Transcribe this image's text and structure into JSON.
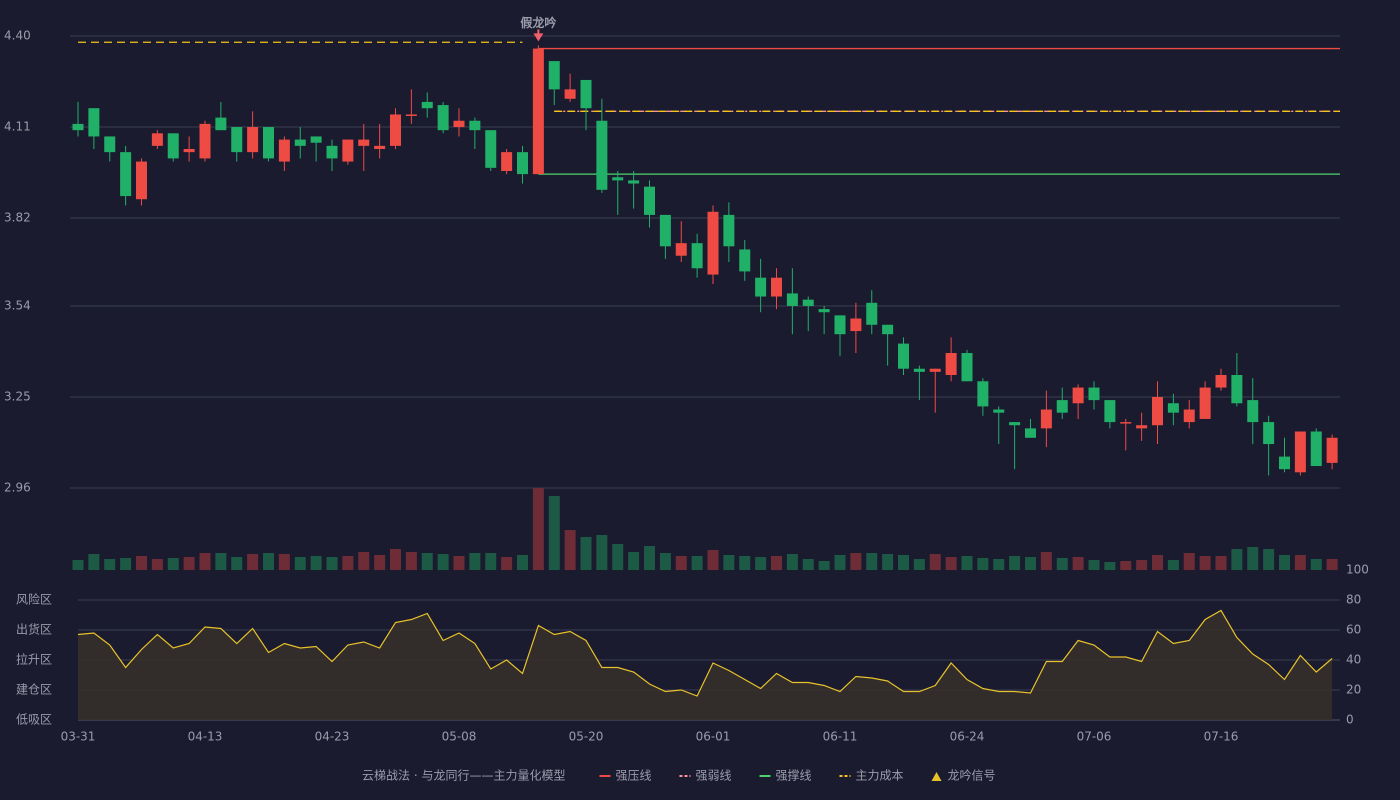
{
  "chart_data": [
    {
      "type": "candlestick",
      "open": [
        4.12,
        4.17,
        4.08,
        4.03,
        3.88,
        4.05,
        4.09,
        4.03,
        4.01,
        4.14,
        4.11,
        4.03,
        4.11,
        4.0,
        4.07,
        4.08,
        4.05,
        4.0,
        4.05,
        4.04,
        4.05,
        4.15,
        4.19,
        4.18,
        4.11,
        4.13,
        4.1,
        3.97,
        4.03,
        3.96,
        4.32,
        4.2,
        4.26,
        4.13,
        3.95,
        3.94,
        3.92,
        3.83,
        3.7,
        3.74,
        3.64,
        3.83,
        3.72,
        3.63,
        3.57,
        3.58,
        3.56,
        3.53,
        3.51,
        3.46,
        3.55,
        3.48,
        3.42,
        3.34,
        3.33,
        3.32,
        3.39,
        3.3,
        3.21,
        3.17,
        3.15,
        3.15,
        3.24,
        3.23,
        3.28,
        3.24,
        3.17,
        3.15,
        3.16,
        3.23,
        3.17,
        3.18,
        3.28,
        3.32,
        3.24,
        3.17,
        3.06,
        3.01,
        3.14,
        3.04
      ],
      "high": [
        4.19,
        4.17,
        4.08,
        4.05,
        4.01,
        4.1,
        4.09,
        4.08,
        4.13,
        4.19,
        4.11,
        4.16,
        4.11,
        4.08,
        4.11,
        4.08,
        4.07,
        4.07,
        4.12,
        4.12,
        4.17,
        4.23,
        4.22,
        4.19,
        4.17,
        4.14,
        4.1,
        4.04,
        4.05,
        4.37,
        4.32,
        4.28,
        4.26,
        4.2,
        3.97,
        3.97,
        3.94,
        3.83,
        3.81,
        3.77,
        3.86,
        3.87,
        3.75,
        3.69,
        3.66,
        3.66,
        3.57,
        3.54,
        3.51,
        3.55,
        3.59,
        3.48,
        3.44,
        3.35,
        3.34,
        3.44,
        3.4,
        3.31,
        3.22,
        3.17,
        3.18,
        3.27,
        3.28,
        3.29,
        3.3,
        3.24,
        3.18,
        3.2,
        3.3,
        3.26,
        3.24,
        3.3,
        3.34,
        3.39,
        3.31,
        3.19,
        3.12,
        3.14,
        3.15,
        3.13
      ],
      "low": [
        4.08,
        4.04,
        4.0,
        3.86,
        3.86,
        4.04,
        4.0,
        4.0,
        4.0,
        4.1,
        4.0,
        4.01,
        4.0,
        3.97,
        4.01,
        4.0,
        3.97,
        3.99,
        3.97,
        4.01,
        4.04,
        4.12,
        4.14,
        4.09,
        4.08,
        4.04,
        3.97,
        3.96,
        3.93,
        3.96,
        4.18,
        4.19,
        4.1,
        3.9,
        3.83,
        3.85,
        3.79,
        3.69,
        3.68,
        3.63,
        3.61,
        3.68,
        3.62,
        3.52,
        3.53,
        3.45,
        3.46,
        3.45,
        3.38,
        3.39,
        3.45,
        3.35,
        3.32,
        3.24,
        3.2,
        3.3,
        3.3,
        3.19,
        3.1,
        3.02,
        3.12,
        3.09,
        3.18,
        3.18,
        3.21,
        3.15,
        3.08,
        3.11,
        3.1,
        3.16,
        3.15,
        3.18,
        3.27,
        3.22,
        3.1,
        3.0,
        3.01,
        3.0,
        3.03,
        3.02
      ],
      "close": [
        4.1,
        4.08,
        4.03,
        3.89,
        4.0,
        4.09,
        4.01,
        4.04,
        4.12,
        4.1,
        4.03,
        4.11,
        4.01,
        4.07,
        4.05,
        4.06,
        4.01,
        4.07,
        4.07,
        4.05,
        4.15,
        4.15,
        4.17,
        4.1,
        4.13,
        4.1,
        3.98,
        4.03,
        3.96,
        4.36,
        4.23,
        4.23,
        4.17,
        3.91,
        3.94,
        3.93,
        3.83,
        3.73,
        3.74,
        3.66,
        3.84,
        3.73,
        3.65,
        3.57,
        3.63,
        3.54,
        3.54,
        3.52,
        3.45,
        3.5,
        3.48,
        3.45,
        3.34,
        3.33,
        3.34,
        3.39,
        3.3,
        3.22,
        3.2,
        3.16,
        3.12,
        3.21,
        3.2,
        3.28,
        3.24,
        3.17,
        3.17,
        3.16,
        3.25,
        3.2,
        3.21,
        3.28,
        3.32,
        3.23,
        3.17,
        3.1,
        3.02,
        3.14,
        3.03,
        3.12
      ],
      "up_color": "#ef4b45",
      "down_color": "#21b068",
      "ylim": [
        2.96,
        4.4
      ],
      "yticks": [
        2.96,
        3.25,
        3.54,
        3.82,
        4.11,
        {
          "value": 4.4,
          "label": "4.40"
        }
      ],
      "grid": true,
      "lines": [
        {
          "name": "强压线",
          "value": 4.36,
          "x": [
            29,
            79
          ],
          "color": "#ef4b45",
          "style": "solid"
        },
        {
          "name": "强弱线",
          "value": 4.16,
          "x": [
            30,
            79
          ],
          "color": "#ff8fa0",
          "style": "dashdot"
        },
        {
          "name": "强撑线",
          "value": 3.96,
          "x": [
            29,
            79
          ],
          "color": "#4ed36a",
          "style": "solid"
        },
        {
          "name": "主力成本",
          "value": 4.38,
          "x": [
            0,
            28
          ],
          "color": "#f5c518",
          "style": "dashed"
        },
        {
          "name": "主力成本",
          "value": 4.16,
          "x": [
            30,
            79
          ],
          "color": "#f5c518",
          "style": "dashed"
        }
      ],
      "signal": {
        "name": "龙吟信号",
        "text": "假龙吟",
        "x": 29,
        "value": 4.37,
        "color": "#f0606a"
      }
    },
    {
      "type": "volume",
      "values": [
        10,
        16,
        11,
        12,
        14,
        11,
        12,
        13,
        17,
        17,
        13,
        16,
        17,
        16,
        13,
        14,
        13,
        14,
        18,
        15,
        21,
        18,
        17,
        16,
        14,
        17,
        17,
        13,
        15,
        82,
        74,
        40,
        33,
        35,
        26,
        18,
        24,
        17,
        14,
        14,
        20,
        15,
        14,
        13,
        14,
        16,
        11,
        9,
        15,
        17,
        17,
        16,
        15,
        11,
        16,
        13,
        14,
        12,
        11,
        14,
        13,
        18,
        12,
        13,
        10,
        8,
        9,
        10,
        15,
        10,
        17,
        14,
        14,
        21,
        23,
        21,
        15,
        15,
        11,
        11
      ],
      "ylim": [
        0,
        82
      ],
      "up_color": "#6e2c37",
      "down_color": "#1d5a46"
    },
    {
      "type": "area",
      "categories": [
        "03-31",
        null,
        null,
        null,
        null,
        null,
        null,
        null,
        "04-13",
        null,
        null,
        null,
        null,
        null,
        null,
        null,
        "04-23",
        null,
        null,
        null,
        null,
        null,
        null,
        null,
        "05-08",
        null,
        null,
        null,
        null,
        null,
        null,
        null,
        "05-20",
        null,
        null,
        null,
        null,
        null,
        null,
        null,
        "06-01",
        null,
        null,
        null,
        null,
        null,
        null,
        null,
        "06-11",
        null,
        null,
        null,
        null,
        null,
        null,
        null,
        "06-24",
        null,
        null,
        null,
        null,
        null,
        null,
        null,
        "07-06",
        null,
        null,
        null,
        null,
        null,
        null,
        null,
        "07-16",
        null,
        null,
        null,
        null,
        null,
        null,
        null
      ],
      "values": [
        57,
        58,
        50,
        35,
        47,
        57,
        48,
        51,
        62,
        61,
        51,
        61,
        45,
        51,
        48,
        49,
        39,
        50,
        52,
        48,
        65,
        67,
        71,
        53,
        58,
        51,
        34,
        40,
        31,
        63,
        57,
        59,
        53,
        35,
        35,
        32,
        24,
        19,
        20,
        16,
        38,
        33,
        27,
        21,
        31,
        25,
        25,
        23,
        19,
        29,
        28,
        26,
        19,
        19,
        23,
        38,
        27,
        21,
        19,
        19,
        18,
        39,
        39,
        53,
        50,
        42,
        42,
        39,
        59,
        51,
        53,
        67,
        73,
        55,
        44,
        37,
        27,
        43,
        32,
        41
      ],
      "color": "#e8c22a",
      "ylim": [
        0,
        100
      ],
      "yticks": [
        0,
        20,
        40,
        60,
        80,
        100
      ],
      "ytick_colors": [
        "#f0505a",
        "#f5a623",
        "#4a90e2",
        "#e040e0",
        "#f5a623",
        "#3ee05a"
      ],
      "zones": [
        {
          "label": "低吸区",
          "value": 0,
          "color": "#f0505a"
        },
        {
          "label": "建仓区",
          "value": 20,
          "color": "#f06060"
        },
        {
          "label": "拉升区",
          "value": 40,
          "color": "#4a90e2"
        },
        {
          "label": "出货区",
          "value": 60,
          "color": "#e040e0"
        },
        {
          "label": "风险区",
          "value": 80,
          "color": "#f5a623"
        }
      ]
    }
  ],
  "legend": {
    "title": "云梯战法 · 与龙同行——主力量化模型",
    "items": [
      "强压线",
      "强弱线",
      "强撑线",
      "主力成本",
      "龙吟信号"
    ]
  }
}
